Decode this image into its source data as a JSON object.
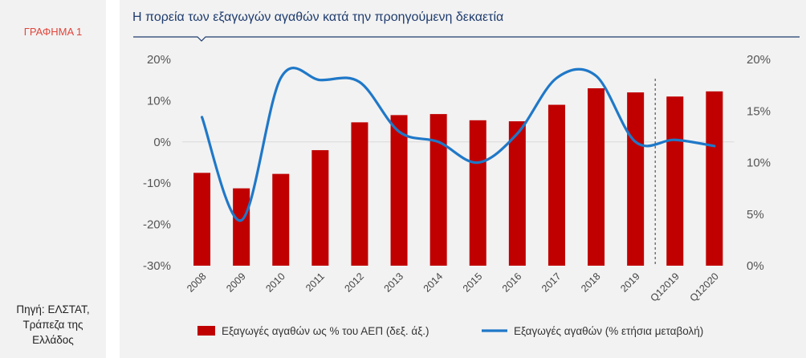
{
  "figure_label": "ΓΡΑΦΗΜΑ 1",
  "source_lines": [
    "Πηγή: ΕΛΣΤΑΤ,",
    "Τράπεζα της",
    "Ελλάδος"
  ],
  "colors": {
    "bar": "#c00000",
    "line": "#1f78c8",
    "title": "#1f3c6e",
    "label": "#e0463c"
  },
  "chart_data": {
    "type": "bar",
    "title": "Η πορεία των εξαγωγών αγαθών κατά την προηγούμενη δεκαετία",
    "categories": [
      "2008",
      "2009",
      "2010",
      "2011",
      "2012",
      "2013",
      "2014",
      "2015",
      "2016",
      "2017",
      "2018",
      "2019",
      "Q12019",
      "Q12020"
    ],
    "y_left": {
      "ticks": [
        "20%",
        "10%",
        "0%",
        "-10%",
        "-20%",
        "-30%"
      ],
      "ylim": [
        -30,
        20
      ]
    },
    "y_right": {
      "ticks": [
        "20%",
        "15%",
        "10%",
        "5%",
        "0%"
      ],
      "ylim": [
        0,
        20
      ]
    },
    "series": [
      {
        "name": "Εξαγωγές αγαθών ως % του ΑΕΠ (δεξ. άξ.)",
        "type": "bar",
        "axis": "right",
        "values": [
          9.0,
          7.5,
          8.9,
          11.2,
          13.9,
          14.6,
          14.7,
          14.1,
          14.0,
          15.6,
          17.2,
          16.8,
          16.4,
          16.9
        ]
      },
      {
        "name": "Εξαγωγές αγαθών (% ετήσια μεταβολή)",
        "type": "line",
        "axis": "left",
        "values": [
          6.0,
          -19.0,
          15.5,
          15.0,
          14.5,
          2.5,
          0.0,
          -5.0,
          2.0,
          15.5,
          16.0,
          0.0,
          0.5,
          -1.0
        ]
      }
    ],
    "divider_after": "2019",
    "legend_position": "bottom"
  }
}
